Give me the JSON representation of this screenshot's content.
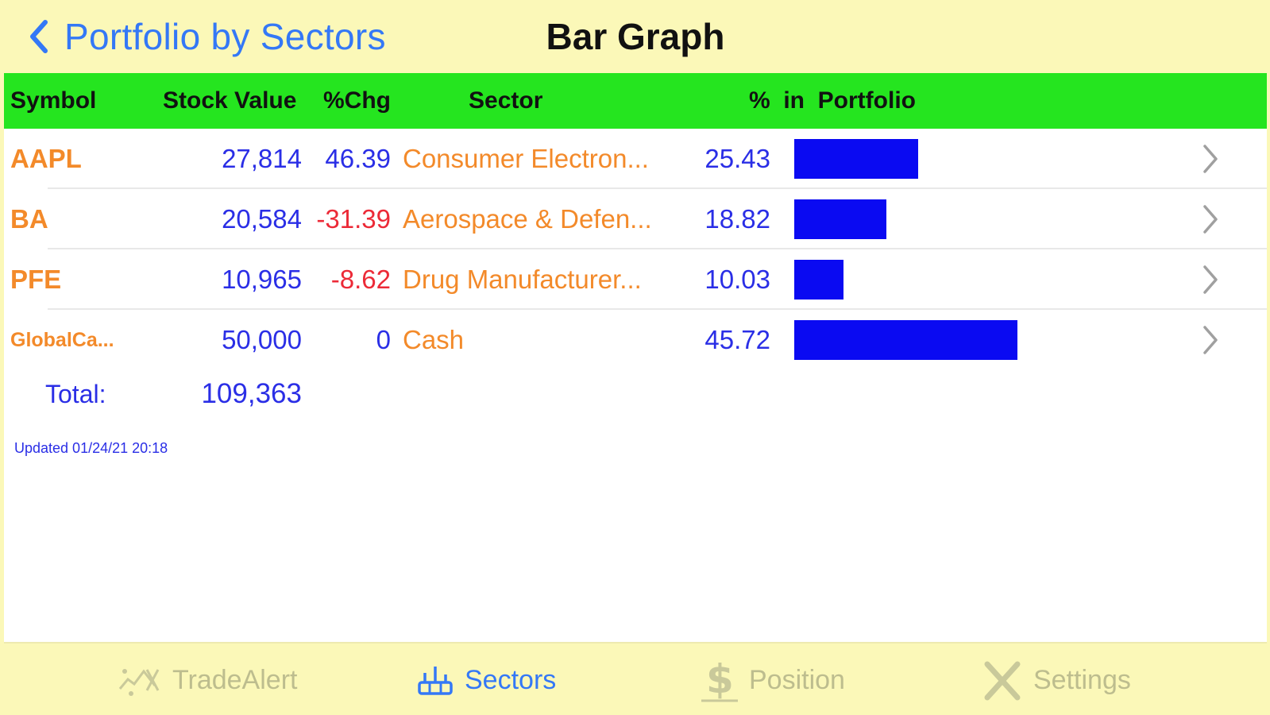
{
  "nav": {
    "back_label": "Portfolio by Sectors",
    "title": "Bar Graph"
  },
  "table": {
    "headers": {
      "symbol": "Symbol",
      "stock_value": "Stock Value",
      "chg": "%Chg",
      "sector": "Sector",
      "pct_in_portfolio": "%  in  Portfolio"
    },
    "rows": [
      {
        "symbol": "AAPL",
        "stock_value": "27,814",
        "chg": "46.39",
        "sector": "Consumer Electron...",
        "pct": "25.43",
        "bar_fraction": 0.2543,
        "chg_color": "#2a2ee6"
      },
      {
        "symbol": "BA",
        "stock_value": "20,584",
        "chg": "-31.39",
        "sector": "Aerospace & Defen...",
        "pct": "18.82",
        "bar_fraction": 0.1882,
        "chg_color": "#ec2a37"
      },
      {
        "symbol": "PFE",
        "stock_value": "10,965",
        "chg": "-8.62",
        "sector": "Drug Manufacturer...",
        "pct": "10.03",
        "bar_fraction": 0.1003,
        "chg_color": "#ec2a37"
      },
      {
        "symbol": "GlobalCa...",
        "stock_value": "50,000",
        "chg": "0",
        "sector": "Cash",
        "pct": "45.72",
        "bar_fraction": 0.4572,
        "chg_color": "#2a2ee6"
      }
    ],
    "total_label": "Total:",
    "total_value": "109,363",
    "updated": "Updated 01/24/21 20:18"
  },
  "tabbar": {
    "tabs": [
      {
        "label": "TradeAlert",
        "icon": "tradealert-icon",
        "active": false
      },
      {
        "label": "Sectors",
        "icon": "sectors-icon",
        "active": true
      },
      {
        "label": "Position",
        "icon": "dollar-icon",
        "active": false
      },
      {
        "label": "Settings",
        "icon": "settings-tools-icon",
        "active": false
      }
    ]
  },
  "colors": {
    "nav_background": "#fbf8b8",
    "header_background": "#25e51f",
    "bar": "#0a0af2",
    "link_blue": "#3478f6",
    "symbol_orange": "#f38a2a",
    "value_blue": "#2a2ee6",
    "negative_red": "#ec2a37"
  }
}
